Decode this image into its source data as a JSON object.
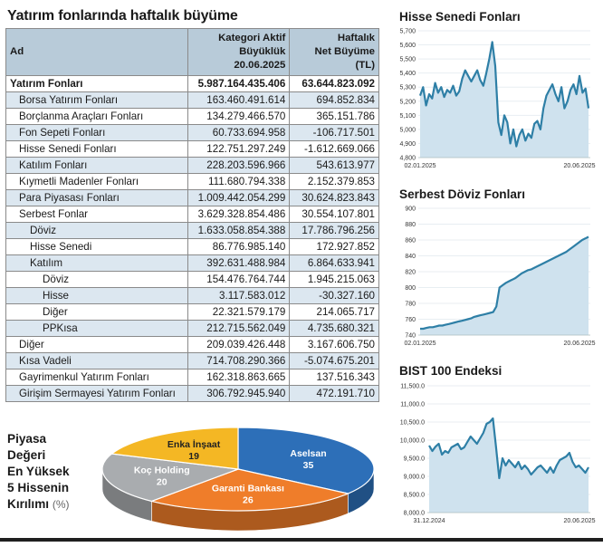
{
  "table": {
    "title": "Yatırım fonlarında haftalık büyüme",
    "col_name": "Ad",
    "col_size": [
      "Kategori Aktif",
      "Büyüklük",
      "20.06.2025"
    ],
    "col_growth": [
      "Haftalık",
      "Net Büyüme",
      "(TL)"
    ],
    "rows": [
      {
        "name": "Yatırım Fonları",
        "size": "5.987.164.435.406",
        "growth": "63.644.823.092",
        "level": 0,
        "bold": true,
        "shade": false
      },
      {
        "name": "Borsa Yatırım Fonları",
        "size": "163.460.491.614",
        "growth": "694.852.834",
        "level": 1,
        "bold": false,
        "shade": true
      },
      {
        "name": "Borçlanma Araçları Fonları",
        "size": "134.279.466.570",
        "growth": "365.151.786",
        "level": 1,
        "bold": false,
        "shade": false
      },
      {
        "name": "Fon Sepeti Fonları",
        "size": "60.733.694.958",
        "growth": "-106.717.501",
        "level": 1,
        "bold": false,
        "shade": true
      },
      {
        "name": "Hisse Senedi Fonları",
        "size": "122.751.297.249",
        "growth": "-1.612.669.066",
        "level": 1,
        "bold": false,
        "shade": false
      },
      {
        "name": "Katılım Fonları",
        "size": "228.203.596.966",
        "growth": "543.613.977",
        "level": 1,
        "bold": false,
        "shade": true
      },
      {
        "name": "Kıymetli Madenler Fonları",
        "size": "111.680.794.338",
        "growth": "2.152.379.853",
        "level": 1,
        "bold": false,
        "shade": false
      },
      {
        "name": "Para Piyasası Fonları",
        "size": "1.009.442.054.299",
        "growth": "30.624.823.843",
        "level": 1,
        "bold": false,
        "shade": true
      },
      {
        "name": "Serbest Fonlar",
        "size": "3.629.328.854.486",
        "growth": "30.554.107.801",
        "level": 1,
        "bold": false,
        "shade": false
      },
      {
        "name": "Döviz",
        "size": "1.633.058.854.388",
        "growth": "17.786.796.256",
        "level": 2,
        "bold": false,
        "shade": true
      },
      {
        "name": "Hisse Senedi",
        "size": "86.776.985.140",
        "growth": "172.927.852",
        "level": 2,
        "bold": false,
        "shade": false
      },
      {
        "name": "Katılım",
        "size": "392.631.488.984",
        "growth": "6.864.633.941",
        "level": 2,
        "bold": false,
        "shade": true
      },
      {
        "name": "Döviz",
        "size": "154.476.764.744",
        "growth": "1.945.215.063",
        "level": 3,
        "bold": false,
        "shade": false
      },
      {
        "name": "Hisse",
        "size": "3.117.583.012",
        "growth": "-30.327.160",
        "level": 3,
        "bold": false,
        "shade": true
      },
      {
        "name": "Diğer",
        "size": "22.321.579.179",
        "growth": "214.065.717",
        "level": 3,
        "bold": false,
        "shade": false
      },
      {
        "name": "PPKısa",
        "size": "212.715.562.049",
        "growth": "4.735.680.321",
        "level": 3,
        "bold": false,
        "shade": true
      },
      {
        "name": "Diğer",
        "size": "209.039.426.448",
        "growth": "3.167.606.750",
        "level": 1,
        "bold": false,
        "shade": false
      },
      {
        "name": "Kısa Vadeli",
        "size": "714.708.290.366",
        "growth": "-5.074.675.201",
        "level": 1,
        "bold": false,
        "shade": true
      },
      {
        "name": "Gayrimenkul Yatırım Fonları",
        "size": "162.318.863.665",
        "growth": "137.516.343",
        "level": 1,
        "bold": false,
        "shade": false
      },
      {
        "name": "Girişim Sermayesi Yatırım Fonları",
        "size": "306.792.945.940",
        "growth": "472.191.710",
        "level": 1,
        "bold": false,
        "shade": true
      }
    ]
  },
  "pie_label": {
    "lines": [
      "Piyasa",
      "Değeri",
      "En Yüksek",
      "5 Hissenin",
      "Kırılımı"
    ],
    "unit": "(%)"
  },
  "colors": {
    "line": "#2e7fa6",
    "fill": "#cfe2ee",
    "grid": "#e8eef2",
    "header": "#b8cbd9",
    "shade": "#dce7f0"
  },
  "chart_data": [
    {
      "type": "pie",
      "title": "Piyasa Değeri En Yüksek 5 Hissenin Kırılımı (%)",
      "slices": [
        {
          "label": "Aselsan",
          "value": 35,
          "color": "#2d6fb8"
        },
        {
          "label": "Garanti Bankası",
          "value": 26,
          "color": "#ef7d2a"
        },
        {
          "label": "Koç Holding",
          "value": 20,
          "color": "#a9acaf"
        },
        {
          "label": "Enka İnşaat",
          "value": 19,
          "color": "#f4b724"
        }
      ]
    },
    {
      "type": "area",
      "title": "Hisse Senedi Fonları",
      "ylim": [
        4800,
        5700
      ],
      "yticks": [
        "4,800",
        "4,900",
        "5,000",
        "5,100",
        "5,200",
        "5,300",
        "5,400",
        "5,500",
        "5,600",
        "5,700"
      ],
      "xticks": [
        "02.01.2025",
        "20.06.2025"
      ],
      "values": [
        5240,
        5300,
        5170,
        5250,
        5220,
        5330,
        5260,
        5300,
        5230,
        5280,
        5260,
        5310,
        5240,
        5270,
        5360,
        5420,
        5380,
        5340,
        5380,
        5420,
        5350,
        5310,
        5400,
        5500,
        5620,
        5450,
        5050,
        4960,
        5100,
        5050,
        4900,
        5000,
        4880,
        4960,
        5000,
        4920,
        4970,
        4940,
        5040,
        5060,
        5000,
        5150,
        5240,
        5280,
        5320,
        5250,
        5200,
        5300,
        5150,
        5200,
        5280,
        5320,
        5250,
        5380,
        5260,
        5290,
        5150
      ]
    },
    {
      "type": "area",
      "title": "Serbest Döviz Fonları",
      "ylim": [
        740,
        900
      ],
      "yticks": [
        "740",
        "760",
        "780",
        "800",
        "820",
        "840",
        "860",
        "880",
        "900"
      ],
      "xticks": [
        "02.01.2025",
        "20.06.2025"
      ],
      "values": [
        748,
        748,
        749,
        750,
        750,
        751,
        752,
        752,
        753,
        754,
        755,
        756,
        757,
        758,
        759,
        760,
        761,
        763,
        764,
        765,
        766,
        767,
        768,
        769,
        776,
        800,
        803,
        806,
        808,
        810,
        812,
        815,
        818,
        820,
        822,
        823,
        825,
        827,
        829,
        831,
        833,
        835,
        837,
        839,
        841,
        843,
        845,
        848,
        851,
        854,
        857,
        860,
        862,
        864
      ]
    },
    {
      "type": "area",
      "title": "BIST 100 Endeksi",
      "ylim": [
        8000,
        11500
      ],
      "yticks": [
        "8,000.0",
        "8,500.0",
        "9,000.0",
        "9,500.0",
        "10,000.0",
        "10,500.0",
        "11,000.0",
        "11,500.0"
      ],
      "xticks": [
        "31.12.2024",
        "20.06.2025"
      ],
      "values": [
        9850,
        9700,
        9820,
        9900,
        9600,
        9700,
        9650,
        9800,
        9850,
        9900,
        9750,
        9800,
        9950,
        10100,
        10000,
        9900,
        10050,
        10200,
        10450,
        10500,
        10600,
        9800,
        8950,
        9500,
        9300,
        9450,
        9350,
        9250,
        9400,
        9200,
        9300,
        9200,
        9050,
        9150,
        9250,
        9300,
        9200,
        9100,
        9250,
        9100,
        9300,
        9450,
        9500,
        9550,
        9650,
        9400,
        9250,
        9300,
        9200,
        9100,
        9250
      ]
    }
  ]
}
